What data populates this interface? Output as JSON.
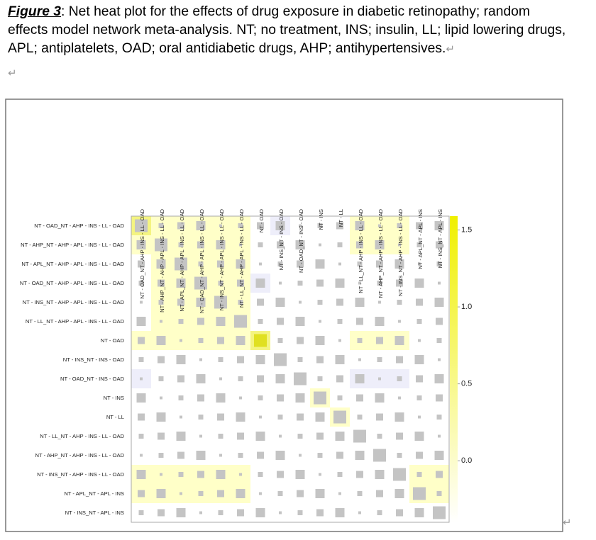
{
  "caption": {
    "label": "Figure 3",
    "text": ": Net heat plot for the effects of drug exposure in diabetic retinopathy; random effects model network meta-analysis. NT; no treatment, INS; insulin, LL; lipid lowering drugs, APL; antiplatelets, OAD; oral antidiabetic drugs, AHP; antihypertensives."
  },
  "paragraph_mark": "↵",
  "figure": {
    "row_labels": [
      "NT - OAD_NT - AHP - INS - LL - OAD",
      "NT - AHP_NT - AHP - APL - INS - LL - OAD",
      "NT - APL_NT - AHP - APL - INS - LL - OAD",
      "NT - OAD_NT - AHP - APL - INS - LL - OAD",
      "NT - INS_NT - AHP - APL - INS - LL - OAD",
      "NT - LL_NT - AHP - APL - INS - LL - OAD",
      "NT - OAD",
      "NT - INS_NT - INS - OAD",
      "NT - OAD_NT - INS - OAD",
      "NT - INS",
      "NT - LL",
      "NT - LL_NT - AHP - INS - LL - OAD",
      "NT - AHP_NT - AHP - INS - LL - OAD",
      "NT - INS_NT - AHP - INS - LL - OAD",
      "NT - APL_NT - APL - INS",
      "NT - INS_NT - APL - INS"
    ],
    "col_labels": [
      "NT - OAD_NT - AHP - INS - LL - OAD",
      "NT - AHP_NT - AHP - APL - INS - LL - OAD",
      "NT - APL_NT - AHP - APL - INS - LL - OAD",
      "NT - OAD_NT - AHP - APL - INS - LL - OAD",
      "NT - INS_NT - AHP - APL - INS - LL - OAD",
      "NT - LL_NT - AHP - APL - INS - LL - OAD",
      "NT - OAD",
      "NT - INS_NT - INS - OAD",
      "NT - OAD_NT - INS - OAD",
      "NT - INS",
      "NT - LL",
      "NT - LL_NT - AHP - INS - LL - OAD",
      "NT - AHP_NT - AHP - INS - LL - OAD",
      "NT - INS_NT - AHP - INS - LL - OAD",
      "NT - APL_NT - APL - INS",
      "NT - INS_NT - APL - INS"
    ],
    "colorbar": {
      "lim": [
        -0.4,
        1.59
      ],
      "ticks": [
        {
          "value": 0,
          "label": "0.0"
        },
        0.5,
        {
          "value": 1,
          "label": "1.0"
        },
        1.5
      ]
    }
  }
}
